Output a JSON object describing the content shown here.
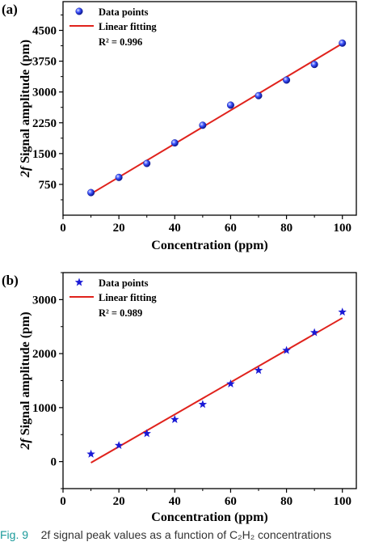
{
  "chart_data": [
    {
      "type": "scatter",
      "panel_label": "(a)",
      "xlabel": "Concentration (ppm)",
      "ylabel_italic": "2f",
      "ylabel_rest": " Signal amplitude (pm)",
      "xlim": [
        0,
        105
      ],
      "ylim": [
        0,
        5200
      ],
      "x_ticks": [
        0,
        20,
        40,
        60,
        80,
        100
      ],
      "y_ticks": [
        750,
        1500,
        2250,
        3000,
        3750,
        4500
      ],
      "marker": "sphere",
      "series": [
        {
          "name": "Data points",
          "x": [
            10,
            20,
            30,
            40,
            50,
            60,
            70,
            80,
            90,
            100
          ],
          "y": [
            550,
            920,
            1260,
            1760,
            2190,
            2680,
            2910,
            3290,
            3670,
            4190
          ]
        }
      ],
      "fit": {
        "name": "Linear fitting",
        "x": [
          10,
          100
        ],
        "y": [
          520,
          4180
        ]
      },
      "r2_text": "R² = 0.996",
      "colors": {
        "marker": "#1f2be0",
        "fit": "#e0221c"
      }
    },
    {
      "type": "scatter",
      "panel_label": "(b)",
      "xlabel": "Concentration (ppm)",
      "ylabel_italic": "2f",
      "ylabel_rest": " Signal amplitude (pm)",
      "xlim": [
        0,
        105
      ],
      "ylim": [
        -500,
        3500
      ],
      "x_ticks": [
        0,
        20,
        40,
        60,
        80,
        100
      ],
      "y_ticks": [
        0,
        1000,
        2000,
        3000
      ],
      "marker": "star",
      "series": [
        {
          "name": "Data points",
          "x": [
            10,
            20,
            30,
            40,
            50,
            60,
            70,
            80,
            90,
            100
          ],
          "y": [
            140,
            300,
            520,
            780,
            1060,
            1440,
            1690,
            2060,
            2390,
            2770
          ]
        }
      ],
      "fit": {
        "name": "Linear fitting",
        "x": [
          10,
          100
        ],
        "y": [
          -20,
          2660
        ]
      },
      "r2_text": "R² = 0.989",
      "colors": {
        "marker": "#1a1ad6",
        "fit": "#e0221c"
      }
    }
  ],
  "caption": {
    "label": "Fig. 9",
    "text": "2f signal peak values as a function of C₂H₂ concentrations"
  }
}
